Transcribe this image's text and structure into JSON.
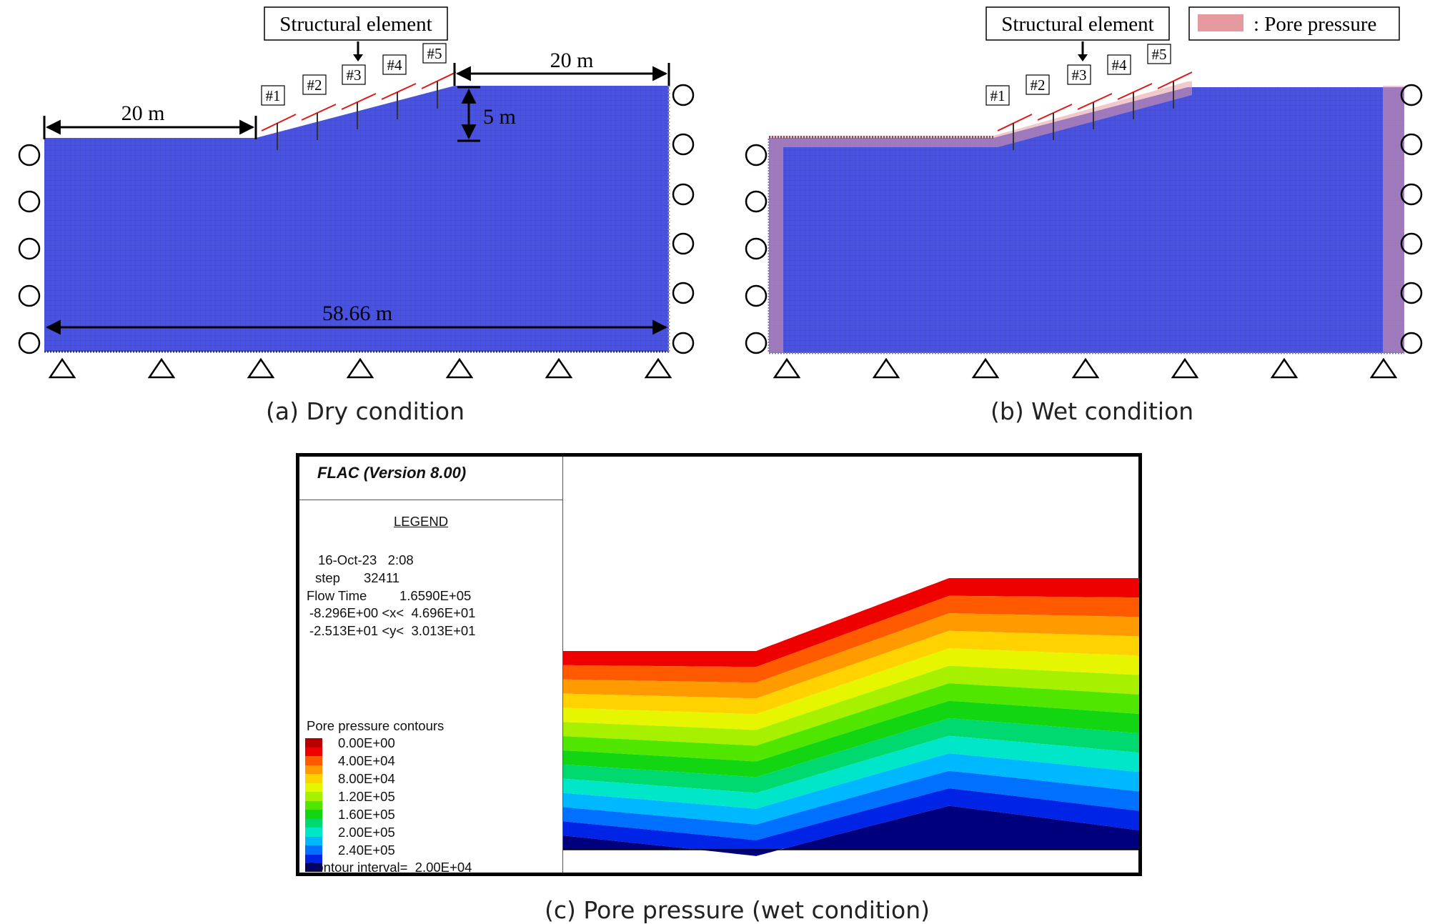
{
  "panel_a": {
    "caption": "(a) Dry condition",
    "structural_label": "Structural element",
    "element_tags": [
      "#1",
      "#2",
      "#3",
      "#4",
      "#5"
    ],
    "dim_left": "20 m",
    "dim_right": "20 m",
    "dim_height": "5 m",
    "dim_total": "58.66 m"
  },
  "panel_b": {
    "caption": "(b) Wet condition",
    "structural_label": "Structural element",
    "element_tags": [
      "#1",
      "#2",
      "#3",
      "#4",
      "#5"
    ],
    "legend_label": ": Pore pressure",
    "pore_color": "#e59aa0"
  },
  "panel_c": {
    "caption": "(c) Pore pressure (wet condition)",
    "title": "FLAC (Version 8.00)",
    "legend_heading": "LEGEND",
    "date_time": "16-Oct-23   2:08",
    "step_label": "step",
    "step_value": "32411",
    "flow_time_label": "Flow Time",
    "flow_time_value": "1.6590E+05",
    "x_range": "-8.296E+00 <x<  4.696E+01",
    "y_range": "-2.513E+01 <y<  3.013E+01",
    "contours_title": "Pore pressure contours",
    "contour_labels": [
      "0.00E+00",
      "4.00E+04",
      "8.00E+04",
      "1.20E+05",
      "1.60E+05",
      "2.00E+05",
      "2.40E+05"
    ],
    "contour_interval": "Contour interval=  2.00E+04",
    "band_colors": [
      "#ee0000",
      "#ff5a00",
      "#ff9a00",
      "#ffd200",
      "#e6f500",
      "#a6f000",
      "#50e600",
      "#12d612",
      "#00d870",
      "#00e6c8",
      "#00b8ff",
      "#0070ff",
      "#0024e6",
      "#00007c"
    ]
  },
  "colors": {
    "soil": "#4a52e0",
    "mesh_line": "#3a40b8"
  }
}
